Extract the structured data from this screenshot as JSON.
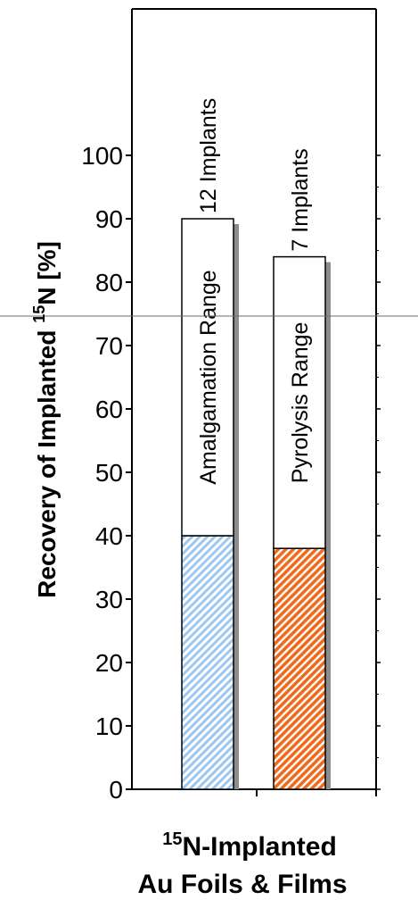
{
  "chart_data": {
    "type": "bar",
    "categories": [
      "Amalgamation",
      "Pyrolysis"
    ],
    "series": [
      {
        "category": "Amalgamation",
        "lower": 40,
        "upper": 90,
        "range_label": "Amalgamation Range",
        "count_label": "12  Implants",
        "fill_color": "#9cc8f0"
      },
      {
        "category": "Pyrolysis",
        "lower": 38,
        "upper": 84,
        "range_label": "Pyrolysis Range",
        "count_label": "7  Implants",
        "fill_color": "#ef6a1c"
      }
    ],
    "ylim": [
      0,
      100
    ],
    "yticks": [
      0,
      10,
      20,
      30,
      40,
      50,
      60,
      70,
      80,
      90,
      100
    ],
    "ylabel_pre": "Recovery of Implanted ",
    "ylabel_sup": "15",
    "ylabel_post": "N [%]",
    "xlabel_line1_sup": "15",
    "xlabel_line1": "N-Implanted",
    "xlabel_line2": "Au Foils & Films",
    "grid": false,
    "legend": "none",
    "reference_line_y": 74
  }
}
